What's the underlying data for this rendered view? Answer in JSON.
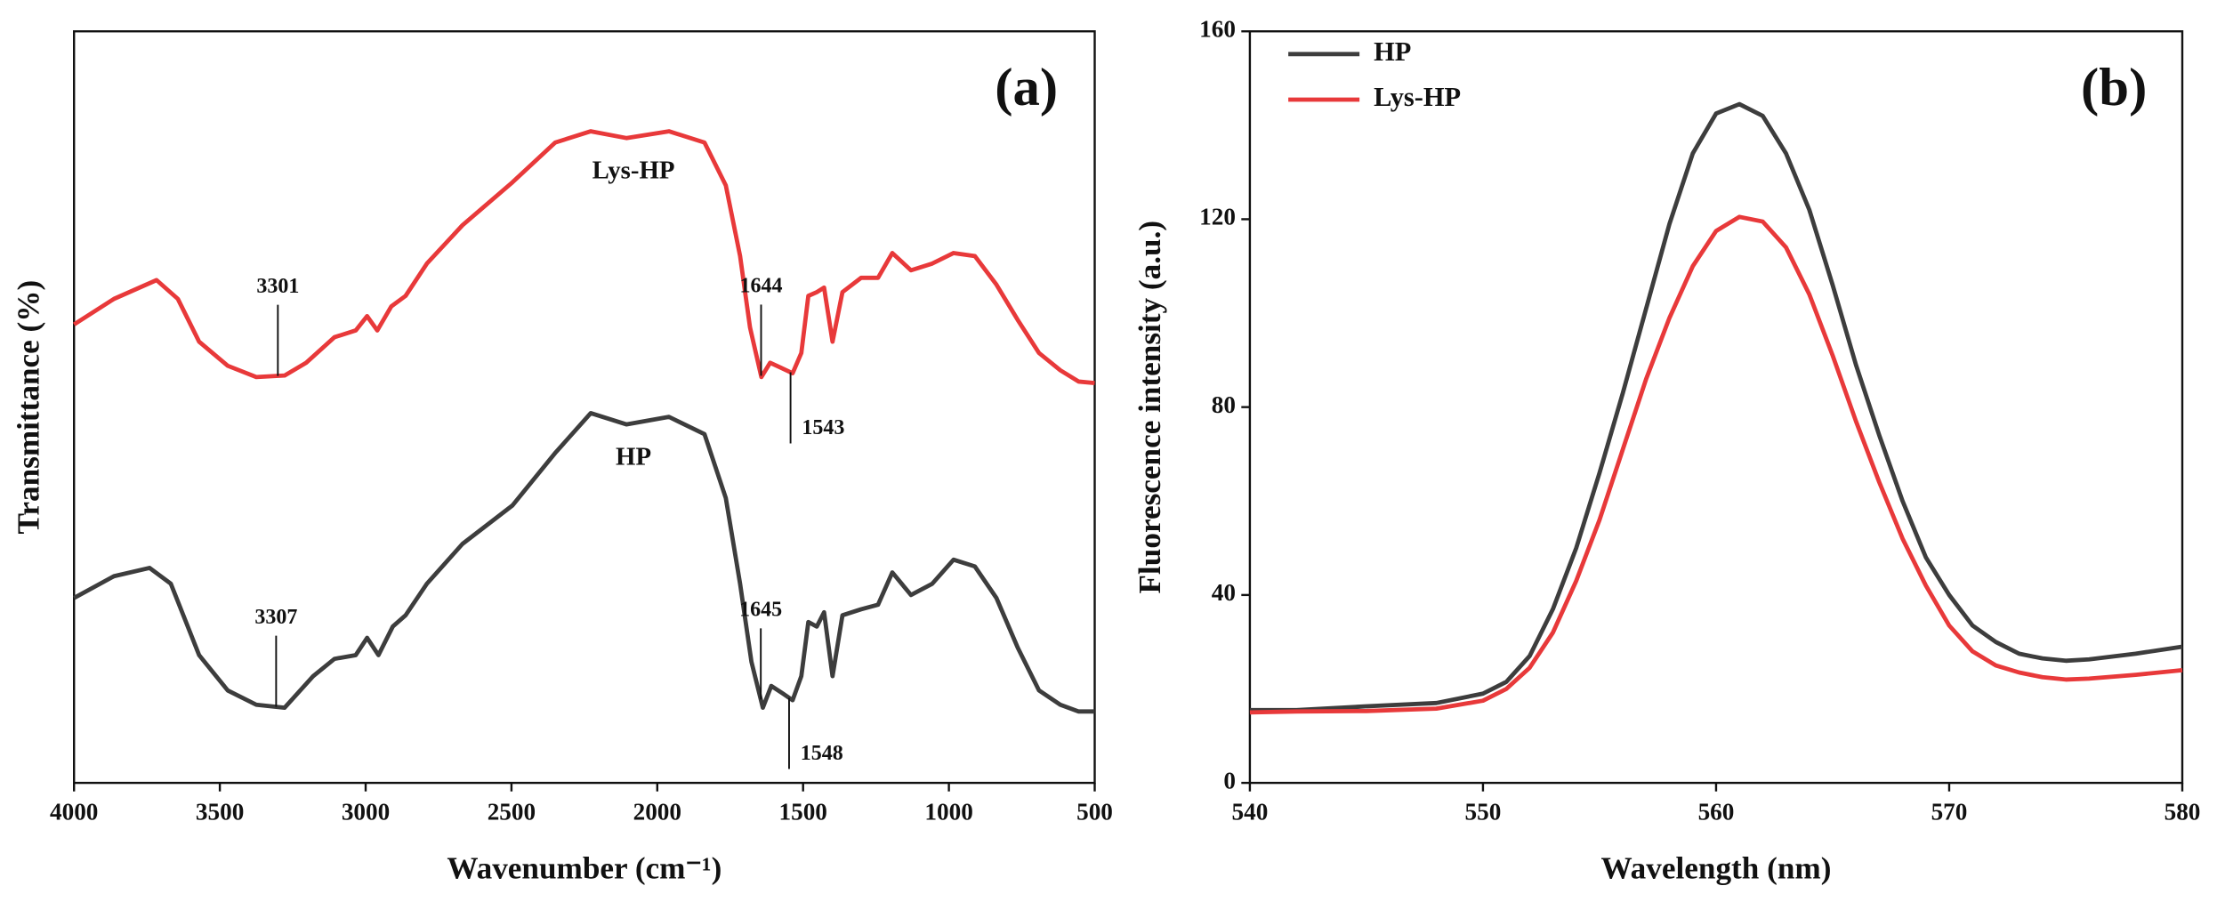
{
  "chart_data": [
    {
      "type": "line",
      "panel_label": "(a)",
      "xlabel": "Wavenumber (cm⁻¹)",
      "ylabel": "Transmittance (%)",
      "xlim": [
        4000,
        500
      ],
      "xticks": [
        4000,
        3500,
        3000,
        2500,
        2000,
        1500,
        1000,
        500
      ],
      "ylim": [
        0,
        100
      ],
      "series": [
        {
          "name": "HP",
          "color": "#3d3d3d",
          "peaks": [
            3307,
            1645,
            1548
          ],
          "x": [
            4000,
            3863,
            3741,
            3668,
            3571,
            3473,
            3375,
            3278,
            3180,
            3107,
            3034,
            2995,
            2956,
            2907,
            2863,
            2790,
            2668,
            2497,
            2350,
            2228,
            2106,
            1960,
            1838,
            1765,
            1716,
            1677,
            1638,
            1609,
            1570,
            1536,
            1506,
            1482,
            1453,
            1428,
            1399,
            1365,
            1301,
            1243,
            1194,
            1130,
            1057,
            984,
            911,
            837,
            764,
            691,
            618,
            555,
            500
          ],
          "values": [
            24.6,
            27.5,
            28.6,
            26.5,
            17.0,
            12.3,
            10.4,
            10.0,
            14.2,
            16.5,
            17.0,
            19.3,
            17.0,
            20.8,
            22.3,
            26.5,
            31.8,
            36.9,
            43.9,
            49.2,
            47.7,
            48.7,
            46.4,
            37.9,
            26.5,
            16.1,
            10.0,
            12.9,
            11.9,
            11.0,
            14.2,
            21.4,
            20.8,
            22.7,
            14.2,
            22.3,
            23.1,
            23.7,
            28.0,
            25.0,
            26.5,
            29.7,
            28.8,
            24.6,
            18.0,
            12.3,
            10.4,
            9.5,
            9.5
          ]
        },
        {
          "name": "Lys-HP",
          "color": "#e8393a",
          "peaks": [
            3301,
            1644,
            1543
          ],
          "x": [
            4000,
            3863,
            3717,
            3644,
            3571,
            3473,
            3375,
            3278,
            3204,
            3107,
            3034,
            2995,
            2960,
            2912,
            2863,
            2790,
            2668,
            2497,
            2350,
            2228,
            2106,
            1960,
            1838,
            1765,
            1716,
            1682,
            1643,
            1613,
            1579,
            1536,
            1506,
            1482,
            1453,
            1428,
            1399,
            1365,
            1301,
            1243,
            1194,
            1130,
            1057,
            984,
            911,
            837,
            764,
            691,
            618,
            555,
            500
          ],
          "values": [
            61.0,
            64.4,
            66.9,
            64.4,
            58.7,
            55.5,
            54.0,
            54.2,
            55.9,
            59.3,
            60.2,
            62.1,
            60.2,
            63.4,
            64.8,
            69.1,
            74.2,
            79.9,
            85.2,
            86.7,
            85.8,
            86.7,
            85.2,
            79.5,
            70.1,
            60.6,
            54.0,
            55.9,
            55.3,
            54.5,
            57.2,
            64.8,
            65.3,
            65.9,
            58.7,
            65.3,
            67.2,
            67.2,
            70.5,
            68.2,
            69.1,
            70.5,
            70.1,
            66.3,
            61.6,
            57.2,
            54.9,
            53.4,
            53.2
          ]
        }
      ]
    },
    {
      "type": "line",
      "panel_label": "(b)",
      "xlabel": "Wavelength (nm)",
      "ylabel": "Fluorescence intensity (a.u.)",
      "xlim": [
        540,
        580
      ],
      "xticks": [
        540,
        550,
        560,
        570,
        580
      ],
      "ylim": [
        0,
        160
      ],
      "yticks": [
        0,
        40,
        80,
        120,
        160
      ],
      "legend": "upper left",
      "series": [
        {
          "name": "HP",
          "color": "#3d3d3d",
          "x": [
            540,
            542,
            545,
            548,
            550,
            551,
            552,
            553,
            554,
            555,
            556,
            557,
            558,
            559,
            560,
            561,
            562,
            563,
            564,
            565,
            566,
            567,
            568,
            569,
            570,
            571,
            572,
            573,
            574,
            575,
            576,
            578,
            580
          ],
          "values": [
            15.5,
            15.5,
            16.3,
            17,
            19,
            21.5,
            27,
            37,
            50,
            66,
            83,
            101,
            119,
            134,
            142.5,
            144.5,
            142,
            134,
            122,
            106,
            89,
            74,
            60,
            48,
            40,
            33.5,
            30,
            27.5,
            26.5,
            26,
            26.3,
            27.5,
            29
          ]
        },
        {
          "name": "Lys-HP",
          "color": "#e8393a",
          "x": [
            540,
            542,
            545,
            548,
            550,
            551,
            552,
            553,
            554,
            555,
            556,
            557,
            558,
            559,
            560,
            561,
            562,
            563,
            564,
            565,
            566,
            567,
            568,
            569,
            570,
            571,
            572,
            573,
            574,
            575,
            576,
            578,
            580
          ],
          "values": [
            15,
            15.2,
            15.3,
            15.8,
            17.5,
            20,
            24.5,
            32,
            43,
            56,
            71,
            86,
            99,
            110,
            117.5,
            120.5,
            119.5,
            114,
            104,
            91,
            77,
            64,
            52,
            42,
            33.5,
            28,
            25,
            23.5,
            22.5,
            22,
            22.2,
            23,
            24
          ]
        }
      ]
    }
  ]
}
